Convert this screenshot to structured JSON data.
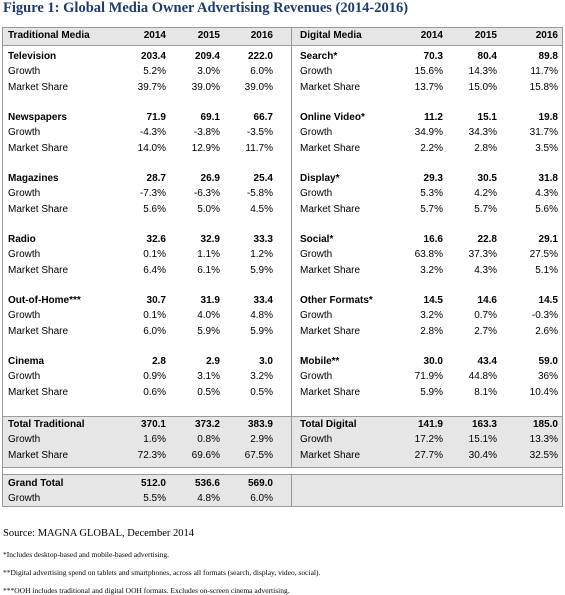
{
  "title": "Figure 1: Global Media Owner Advertising Revenues (2014-2016)",
  "header": {
    "left": [
      "Traditional Media",
      "2014",
      "2015",
      "2016"
    ],
    "right": [
      "Digital Media",
      "2014",
      "2015",
      "2016"
    ]
  },
  "sections": [
    {
      "left": [
        [
          "Television",
          "203.4",
          "209.4",
          "222.0"
        ],
        [
          "Growth",
          "5.2%",
          "3.0%",
          "6.0%"
        ],
        [
          "Market Share",
          "39.7%",
          "39.0%",
          "39.0%"
        ]
      ],
      "right": [
        [
          "Search*",
          "70.3",
          "80.4",
          "89.8"
        ],
        [
          "Growth",
          "15.6%",
          "14.3%",
          "11.7%"
        ],
        [
          "Market Share",
          "13.7%",
          "15.0%",
          "15.8%"
        ]
      ]
    },
    {
      "left": [
        [
          "Newspapers",
          "71.9",
          "69.1",
          "66.7"
        ],
        [
          "Growth",
          "-4.3%",
          "-3.8%",
          "-3.5%"
        ],
        [
          "Market Share",
          "14.0%",
          "12.9%",
          "11.7%"
        ]
      ],
      "right": [
        [
          "Online Video*",
          "11.2",
          "15.1",
          "19.8"
        ],
        [
          "Growth",
          "34.9%",
          "34.3%",
          "31.7%"
        ],
        [
          "Market Share",
          "2.2%",
          "2.8%",
          "3.5%"
        ]
      ]
    },
    {
      "left": [
        [
          "Magazines",
          "28.7",
          "26.9",
          "25.4"
        ],
        [
          "Growth",
          "-7.3%",
          "-6.3%",
          "-5.8%"
        ],
        [
          "Market Share",
          "5.6%",
          "5.0%",
          "4.5%"
        ]
      ],
      "right": [
        [
          "Display*",
          "29.3",
          "30.5",
          "31.8"
        ],
        [
          "Growth",
          "5.3%",
          "4.2%",
          "4.3%"
        ],
        [
          "Market Share",
          "5.7%",
          "5.7%",
          "5.6%"
        ]
      ]
    },
    {
      "left": [
        [
          "Radio",
          "32.6",
          "32.9",
          "33.3"
        ],
        [
          "Growth",
          "0.1%",
          "1.1%",
          "1.2%"
        ],
        [
          "Market Share",
          "6.4%",
          "6.1%",
          "5.9%"
        ]
      ],
      "right": [
        [
          "Social*",
          "16.6",
          "22.8",
          "29.1"
        ],
        [
          "Growth",
          "63.8%",
          "37.3%",
          "27.5%"
        ],
        [
          "Market Share",
          "3.2%",
          "4.3%",
          "5.1%"
        ]
      ]
    },
    {
      "left": [
        [
          "Out-of-Home***",
          "30.7",
          "31.9",
          "33.4"
        ],
        [
          "Growth",
          "0.1%",
          "4.0%",
          "4.8%"
        ],
        [
          "Market Share",
          "6.0%",
          "5.9%",
          "5.9%"
        ]
      ],
      "right": [
        [
          "Other Formats*",
          "14.5",
          "14.6",
          "14.5"
        ],
        [
          "Growth",
          "3.2%",
          "0.7%",
          "-0.3%"
        ],
        [
          "Market Share",
          "2.8%",
          "2.7%",
          "2.6%"
        ]
      ]
    },
    {
      "left": [
        [
          "Cinema",
          "2.8",
          "2.9",
          "3.0"
        ],
        [
          "Growth",
          "0.9%",
          "3.1%",
          "3.2%"
        ],
        [
          "Market Share",
          "0.6%",
          "0.5%",
          "0.5%"
        ]
      ],
      "right": [
        [
          "Mobile**",
          "30.0",
          "43.4",
          "59.0"
        ],
        [
          "Growth",
          "71.9%",
          "44.8%",
          "36%"
        ],
        [
          "Market Share",
          "5.9%",
          "8.1%",
          "10.4%"
        ]
      ]
    }
  ],
  "totals": {
    "left": [
      [
        "Total Traditional",
        "370.1",
        "373.2",
        "383.9"
      ],
      [
        "Growth",
        "1.6%",
        "0.8%",
        "2.9%"
      ],
      [
        "Market Share",
        "72.3%",
        "69.6%",
        "67.5%"
      ]
    ],
    "right": [
      [
        "Total Digital",
        "141.9",
        "163.3",
        "185.0"
      ],
      [
        "Growth",
        "17.2%",
        "15.1%",
        "13.3%"
      ],
      [
        "Market Share",
        "27.7%",
        "30.4%",
        "32.5%"
      ]
    ]
  },
  "grand_total": {
    "left": [
      [
        "Grand Total",
        "512.0",
        "536.6",
        "569.0"
      ],
      [
        "Growth",
        "5.5%",
        "4.8%",
        "6.0%"
      ]
    ]
  },
  "source": "Source: MAGNA GLOBAL, December 2014",
  "footnotes": [
    "*Includes desktop-based and mobile-based advertising.",
    "**Digital advertising spend on tablets and smartphones, across all formats (search, display, video, social).",
    "***OOH includes traditional and digital OOH formats. Excludes on-screen cinema advertising."
  ]
}
